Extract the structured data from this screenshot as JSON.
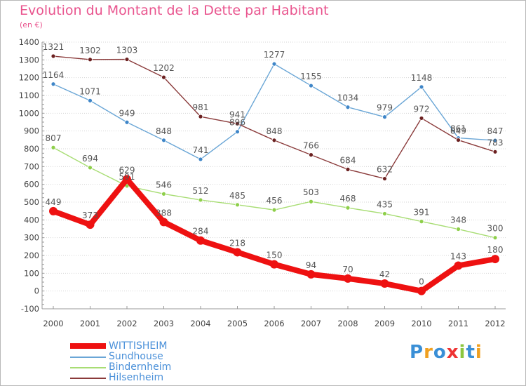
{
  "title": "Evolution du Montant de la Dette par Habitant",
  "subtitle": "(en €)",
  "brand": "Proxiti",
  "colors": {
    "title": "#e9548e",
    "grid": "#d9d9d9",
    "axis": "#999999",
    "accent": "#e21e1e"
  },
  "chart_data": {
    "type": "line",
    "title": "Evolution du Montant de la Dette par Habitant",
    "ylabel": "(en €)",
    "xlabel": "",
    "categories": [
      "2000",
      "2001",
      "2002",
      "2003",
      "2004",
      "2005",
      "2006",
      "2007",
      "2008",
      "2009",
      "2010",
      "2011",
      "2012"
    ],
    "yticks": [
      -100,
      0,
      100,
      200,
      300,
      400,
      500,
      600,
      700,
      800,
      900,
      1000,
      1100,
      1200,
      1300,
      1400
    ],
    "ylim": [
      -100,
      1400
    ],
    "grid": "horizontal dotted",
    "legend_position": "bottom-left",
    "series": [
      {
        "name": "WITTISHEIM",
        "color": "#ee1111",
        "marker": "#ee1111",
        "values": [
          449,
          373,
          629,
          388,
          284,
          218,
          150,
          94,
          70,
          42,
          0,
          143,
          180
        ],
        "emphasis": true
      },
      {
        "name": "Sundhouse",
        "color": "#6aa6d6",
        "marker": "#3f86c8",
        "values": [
          1164,
          1071,
          949,
          848,
          741,
          896,
          1277,
          1155,
          1034,
          979,
          1148,
          861,
          847
        ],
        "emphasis": false
      },
      {
        "name": "Bindernheim",
        "color": "#a8dd74",
        "marker": "#8ecf4a",
        "values": [
          807,
          694,
          591,
          546,
          512,
          485,
          456,
          503,
          468,
          435,
          391,
          348,
          300
        ],
        "emphasis": false
      },
      {
        "name": "Hilsenheim",
        "color": "#8a3a3a",
        "marker": "#6b2020",
        "values": [
          1321,
          1302,
          1303,
          1202,
          981,
          941,
          848,
          766,
          684,
          632,
          972,
          849,
          783
        ],
        "emphasis": false
      }
    ]
  }
}
